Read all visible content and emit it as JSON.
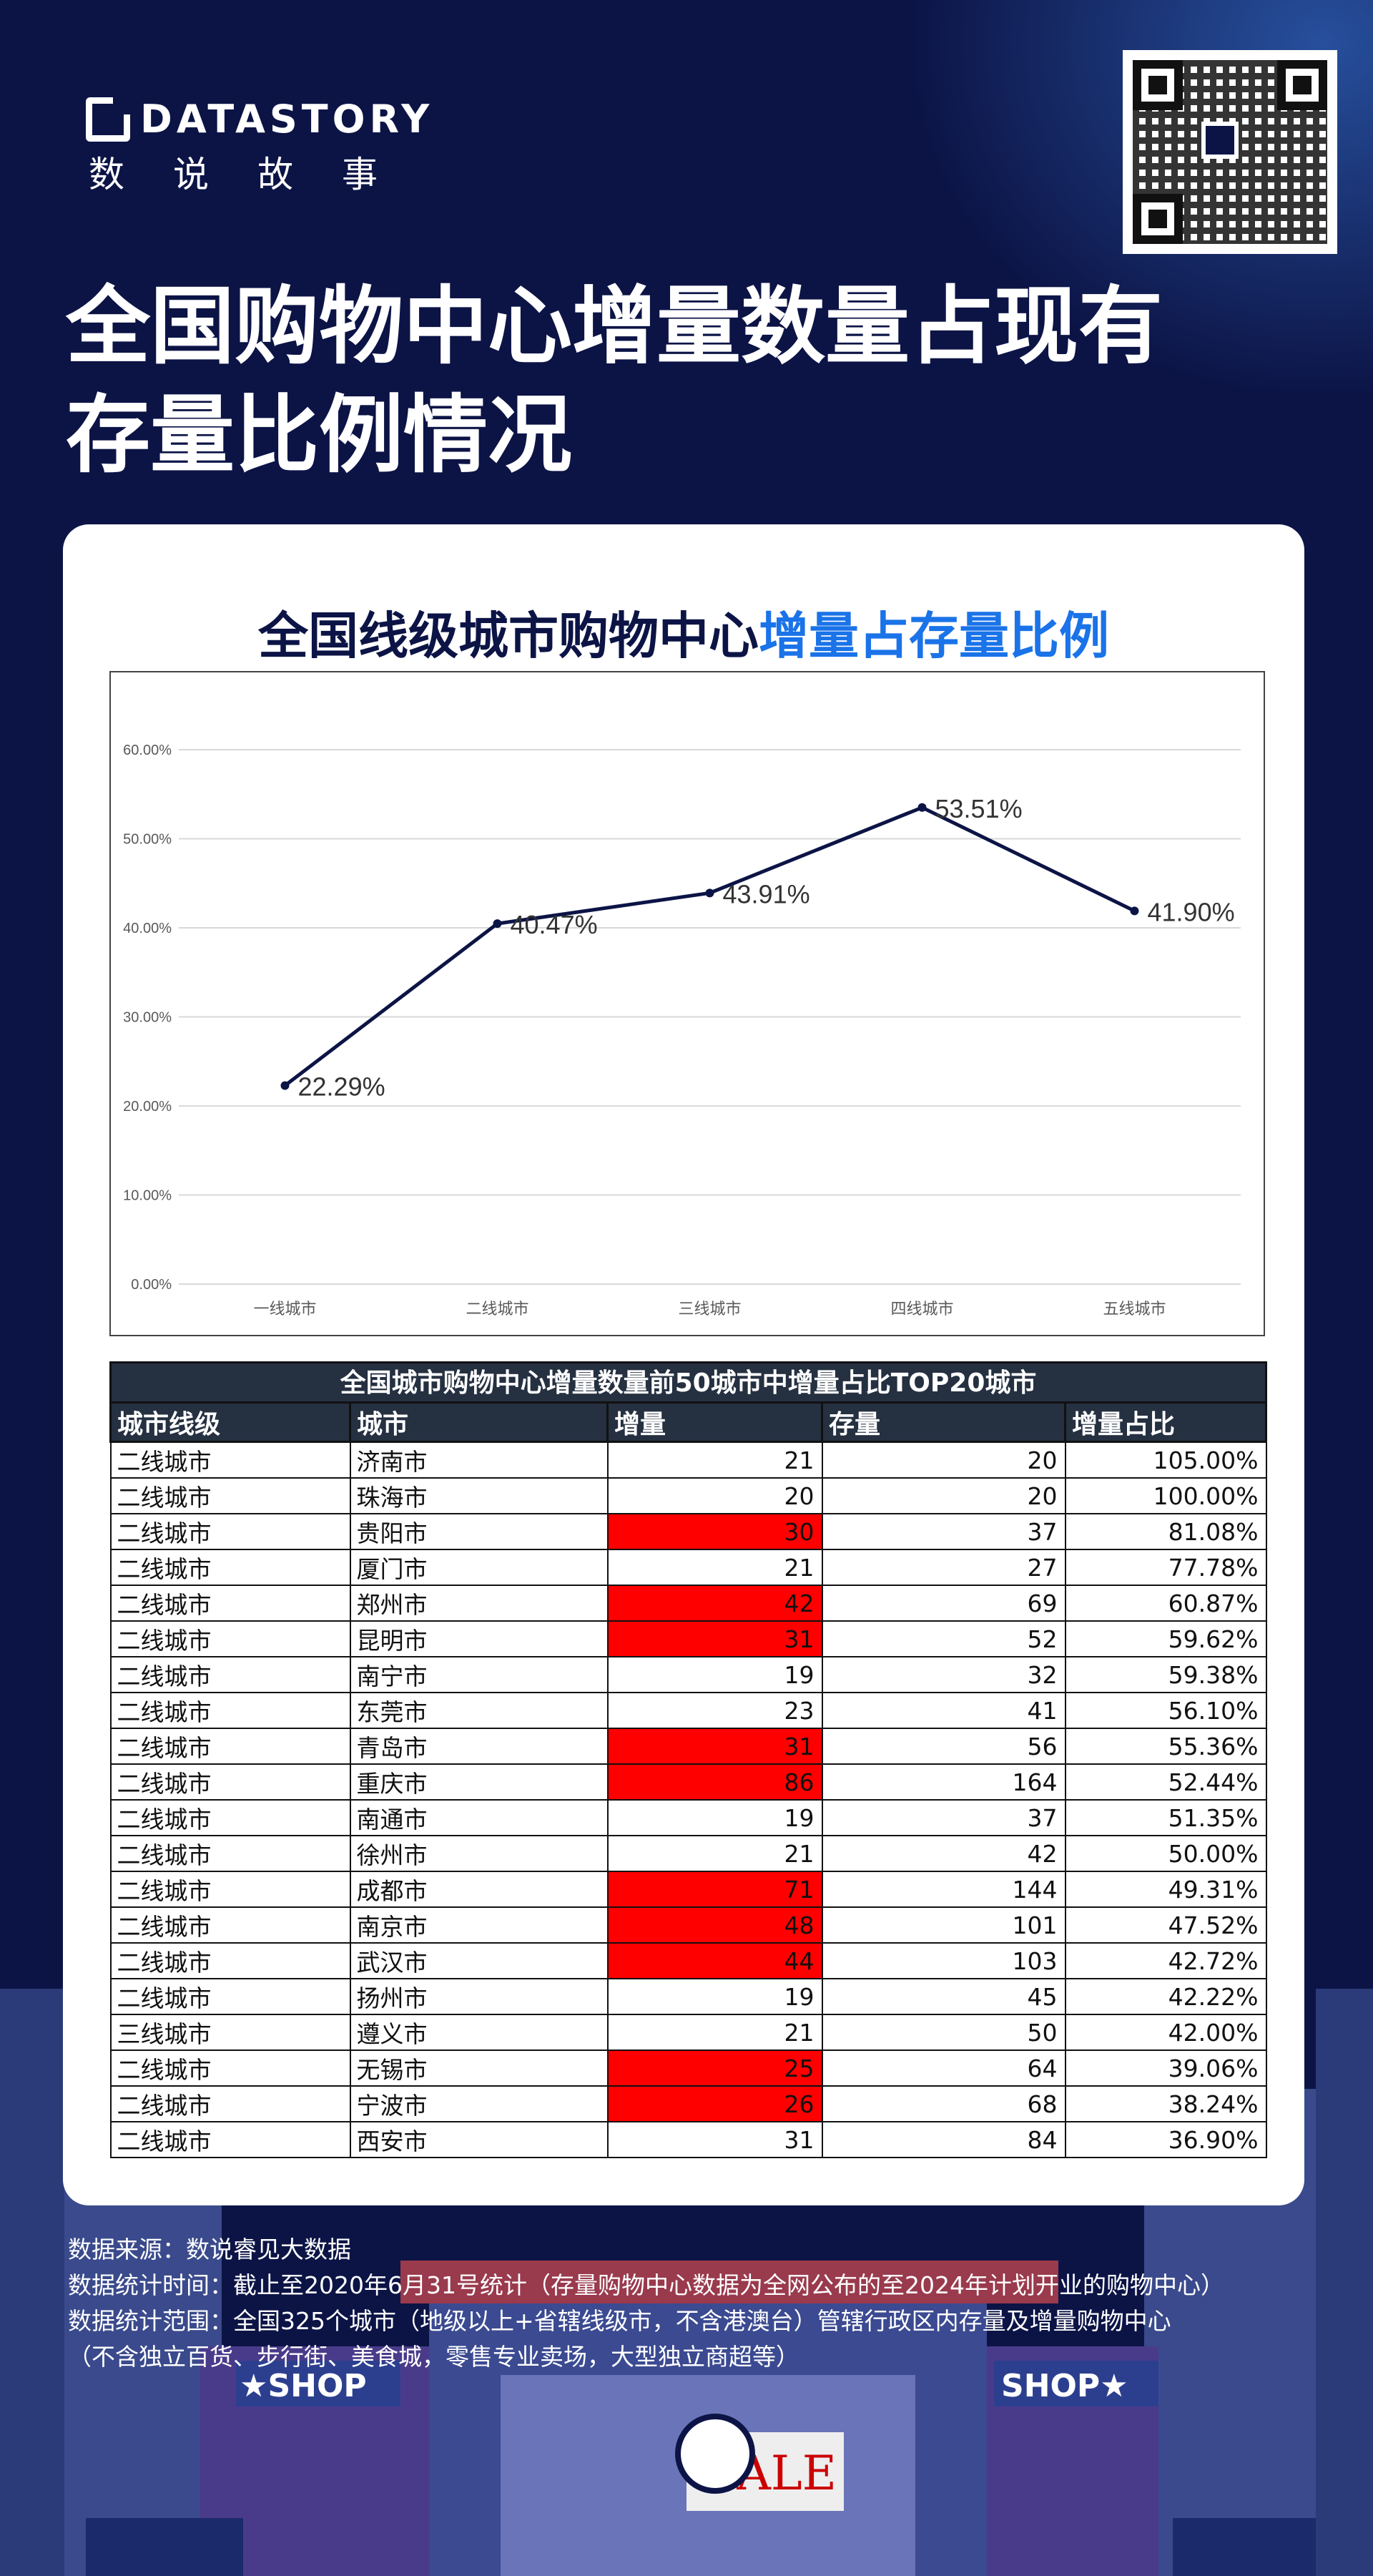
{
  "brand": {
    "logo_text": "DATASTORY",
    "logo_cn": "数说故事"
  },
  "page_title_lines": [
    "全国购物中心增量数量占现有",
    "存量比例情况"
  ],
  "chart_title": {
    "prefix": "全国线级城市购物中心",
    "highlight": "增量占存量比例"
  },
  "chart_data": {
    "type": "line",
    "categories": [
      "一线城市",
      "二线城市",
      "三线城市",
      "四线城市",
      "五线城市"
    ],
    "values": [
      22.29,
      40.47,
      43.91,
      53.51,
      41.9
    ],
    "data_labels": [
      "22.29%",
      "40.47%",
      "43.91%",
      "53.51%",
      "41.90%"
    ],
    "y_ticks": [
      "0.00%",
      "10.00%",
      "20.00%",
      "30.00%",
      "40.00%",
      "50.00%",
      "60.00%"
    ],
    "ylim": [
      0,
      60
    ],
    "grid": true,
    "line_color": "#0c1446",
    "title": "",
    "xlabel": "",
    "ylabel": ""
  },
  "table": {
    "title": "全国城市购物中心增量数量前50城市中增量占比TOP20城市",
    "headers": [
      "城市线级",
      "城市",
      "增量",
      "存量",
      "增量占比"
    ],
    "highlight_color": "#ff0000",
    "rows": [
      {
        "tier": "二线城市",
        "city": "济南市",
        "inc": "21",
        "stock": "20",
        "ratio": "105.00%",
        "hl": false
      },
      {
        "tier": "二线城市",
        "city": "珠海市",
        "inc": "20",
        "stock": "20",
        "ratio": "100.00%",
        "hl": false
      },
      {
        "tier": "二线城市",
        "city": "贵阳市",
        "inc": "30",
        "stock": "37",
        "ratio": "81.08%",
        "hl": true
      },
      {
        "tier": "二线城市",
        "city": "厦门市",
        "inc": "21",
        "stock": "27",
        "ratio": "77.78%",
        "hl": false
      },
      {
        "tier": "二线城市",
        "city": "郑州市",
        "inc": "42",
        "stock": "69",
        "ratio": "60.87%",
        "hl": true
      },
      {
        "tier": "二线城市",
        "city": "昆明市",
        "inc": "31",
        "stock": "52",
        "ratio": "59.62%",
        "hl": true
      },
      {
        "tier": "二线城市",
        "city": "南宁市",
        "inc": "19",
        "stock": "32",
        "ratio": "59.38%",
        "hl": false
      },
      {
        "tier": "二线城市",
        "city": "东莞市",
        "inc": "23",
        "stock": "41",
        "ratio": "56.10%",
        "hl": false
      },
      {
        "tier": "二线城市",
        "city": "青岛市",
        "inc": "31",
        "stock": "56",
        "ratio": "55.36%",
        "hl": true
      },
      {
        "tier": "二线城市",
        "city": "重庆市",
        "inc": "86",
        "stock": "164",
        "ratio": "52.44%",
        "hl": true
      },
      {
        "tier": "二线城市",
        "city": "南通市",
        "inc": "19",
        "stock": "37",
        "ratio": "51.35%",
        "hl": false
      },
      {
        "tier": "二线城市",
        "city": "徐州市",
        "inc": "21",
        "stock": "42",
        "ratio": "50.00%",
        "hl": false
      },
      {
        "tier": "二线城市",
        "city": "成都市",
        "inc": "71",
        "stock": "144",
        "ratio": "49.31%",
        "hl": true
      },
      {
        "tier": "二线城市",
        "city": "南京市",
        "inc": "48",
        "stock": "101",
        "ratio": "47.52%",
        "hl": true
      },
      {
        "tier": "二线城市",
        "city": "武汉市",
        "inc": "44",
        "stock": "103",
        "ratio": "42.72%",
        "hl": true
      },
      {
        "tier": "二线城市",
        "city": "扬州市",
        "inc": "19",
        "stock": "45",
        "ratio": "42.22%",
        "hl": false
      },
      {
        "tier": "三线城市",
        "city": "遵义市",
        "inc": "21",
        "stock": "50",
        "ratio": "42.00%",
        "hl": false
      },
      {
        "tier": "二线城市",
        "city": "无锡市",
        "inc": "25",
        "stock": "64",
        "ratio": "39.06%",
        "hl": true
      },
      {
        "tier": "二线城市",
        "city": "宁波市",
        "inc": "26",
        "stock": "68",
        "ratio": "38.24%",
        "hl": true
      },
      {
        "tier": "二线城市",
        "city": "西安市",
        "inc": "31",
        "stock": "84",
        "ratio": "36.90%",
        "hl": false
      }
    ]
  },
  "footer_lines": [
    "数据来源：数说睿见大数据",
    "数据统计时间：截止至2020年6月31号统计（存量购物中心数据为全网公布的至2024年计划开业的购物中心）",
    "数据统计范围：全国325个城市（地级以上+省辖线级市，不含港澳台）管辖行政区内存量及增量购物中心",
    "（不含独立百货、步行街、美食城，零售专业卖场，大型独立商超等）"
  ],
  "shop_signs": [
    "★SHOP",
    "SHOP★",
    "SALE"
  ]
}
